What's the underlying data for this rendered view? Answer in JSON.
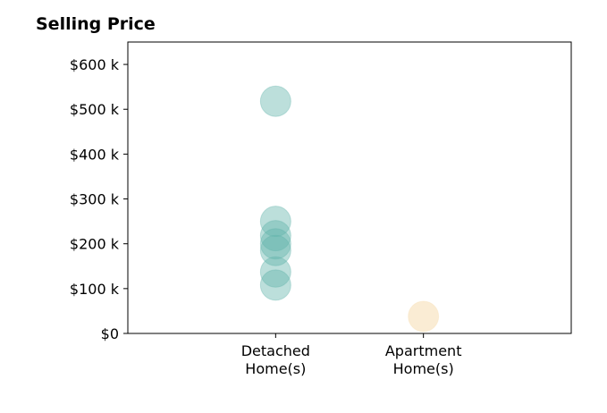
{
  "chart_data": {
    "type": "scatter",
    "title": "Selling Price",
    "xlabel": "",
    "ylabel": "",
    "categories": [
      "Detached\nHome(s)",
      "Apartment\nHome(s)"
    ],
    "xlim": [
      0,
      3
    ],
    "ylim": [
      0,
      650000
    ],
    "yticks": [
      0,
      100000,
      200000,
      300000,
      400000,
      500000,
      600000
    ],
    "ytick_labels": [
      "$0",
      "$100 k",
      "$200 k",
      "$300 k",
      "$400 k",
      "$500 k",
      "$600 k"
    ],
    "grid": false,
    "series": [
      {
        "category": "Detached\nHome(s)",
        "x": 1,
        "color": "#5fb3aa",
        "values": [
          518000,
          250000,
          218000,
          200000,
          185000,
          137000,
          108000
        ]
      },
      {
        "category": "Apartment\nHome(s)",
        "x": 2,
        "color": "#f5ddb0",
        "values": [
          38000
        ]
      }
    ]
  }
}
